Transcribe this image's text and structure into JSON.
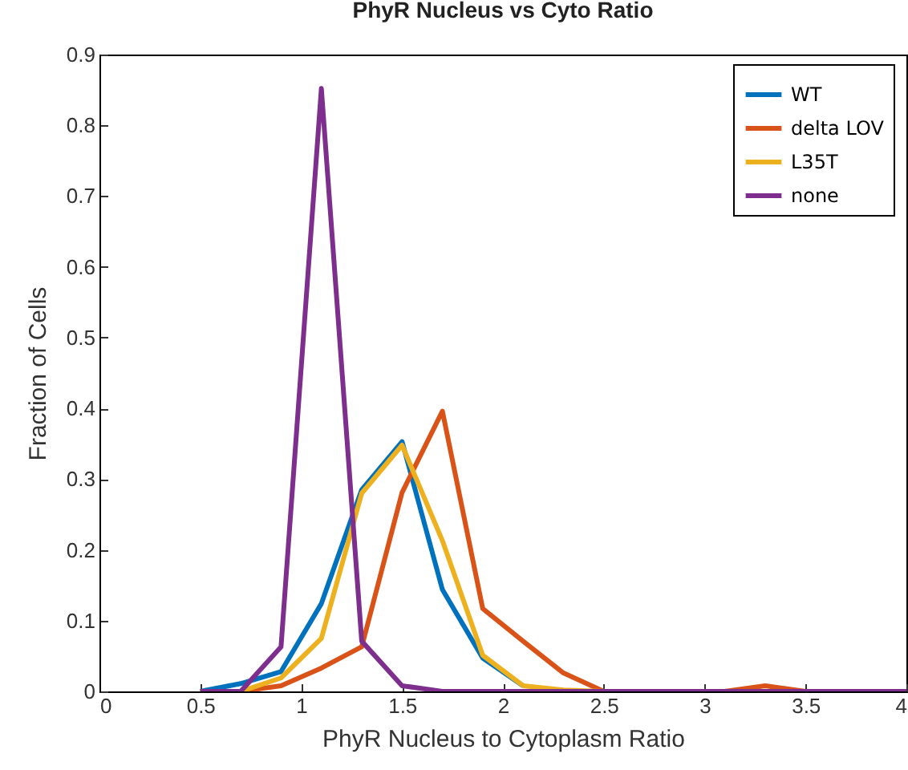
{
  "chart_data": {
    "type": "line",
    "title": "PhyR Nucleus vs Cyto Ratio",
    "xlabel": "PhyR Nucleus to Cytoplasm Ratio",
    "ylabel": "Fraction of Cells",
    "x": [
      0.5,
      0.7,
      0.9,
      1.1,
      1.3,
      1.5,
      1.7,
      1.9,
      2.1,
      2.3,
      2.5,
      2.7,
      2.9,
      3.1,
      3.3,
      3.5,
      3.7,
      3.9,
      4.0
    ],
    "series": [
      {
        "name": "WT",
        "color": "#0072bd",
        "values": [
          0,
          0.011,
          0.028,
          0.124,
          0.285,
          0.353,
          0.144,
          0.047,
          0.008,
          null,
          null,
          null,
          null,
          null,
          null,
          null,
          null,
          null,
          null
        ]
      },
      {
        "name": "delta LOV",
        "color": "#d95319",
        "values": [
          0,
          0,
          0.008,
          0.033,
          0.063,
          0.281,
          0.396,
          0.117,
          0.071,
          0.026,
          0,
          0,
          0,
          0,
          0.008,
          0,
          0,
          null,
          null
        ]
      },
      {
        "name": "L35T",
        "color": "#edb120",
        "values": [
          0,
          0,
          0.019,
          0.075,
          0.28,
          0.348,
          0.213,
          0.051,
          0.008,
          0.002,
          0,
          0,
          null,
          null,
          null,
          null,
          null,
          null,
          null
        ]
      },
      {
        "name": "none",
        "color": "#7e2f8e",
        "values": [
          0,
          0,
          0.063,
          0.852,
          0.071,
          0.008,
          0,
          0,
          0,
          0,
          0,
          0,
          0,
          0,
          0,
          0,
          0,
          0,
          0
        ]
      }
    ],
    "xlim": [
      0,
      4
    ],
    "xticks": [
      0,
      0.5,
      1,
      1.5,
      2,
      2.5,
      3,
      3.5,
      4
    ],
    "ylim": [
      0,
      0.9
    ],
    "yticks": [
      0,
      0.1,
      0.2,
      0.3,
      0.4,
      0.5,
      0.6,
      0.7,
      0.8,
      0.9
    ],
    "grid": false,
    "legend": "top right",
    "marker": "none",
    "line_style": "solid"
  }
}
